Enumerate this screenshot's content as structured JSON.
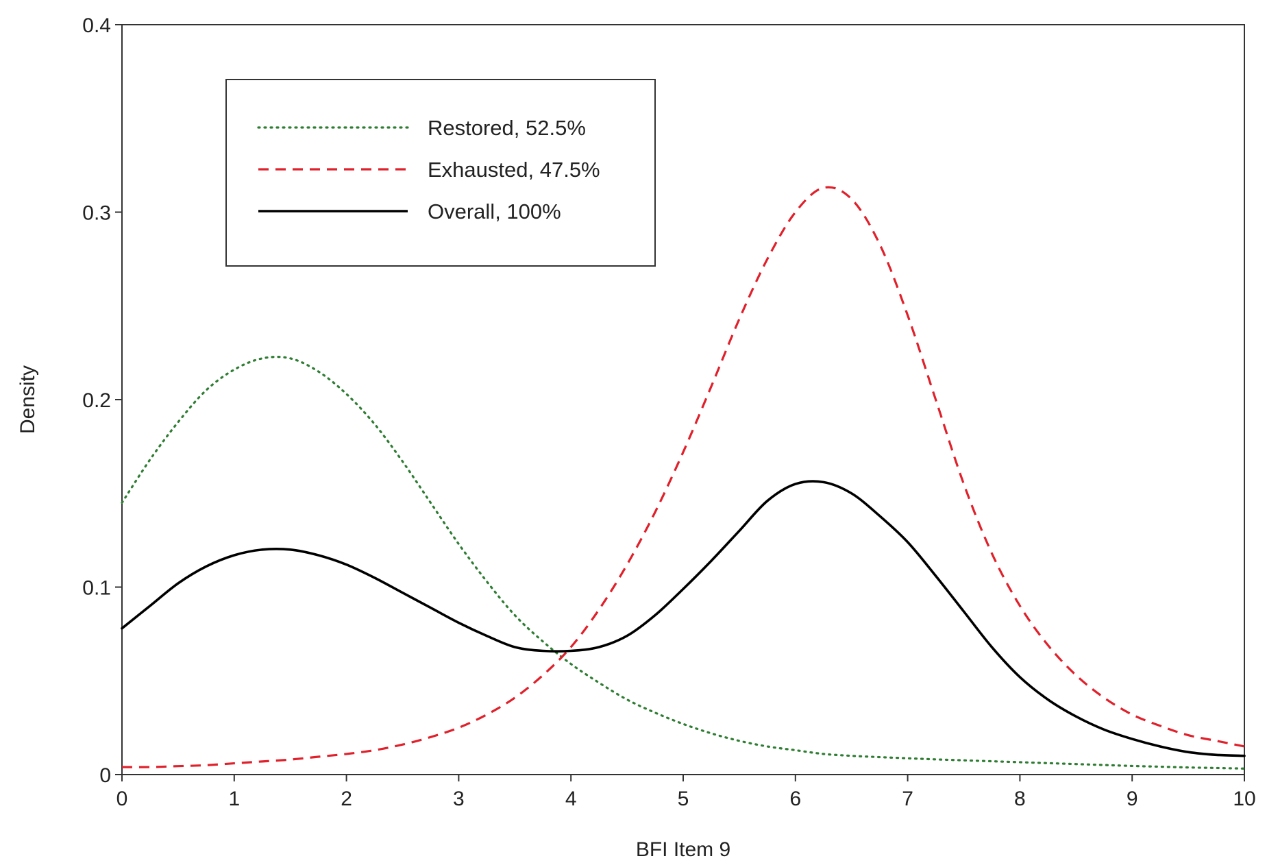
{
  "chart_data": {
    "type": "line",
    "xlabel": "BFI Item 9",
    "ylabel": "Density",
    "xlim": [
      0,
      10
    ],
    "ylim": [
      0,
      0.4
    ],
    "xticks": [
      "0",
      "1",
      "2",
      "3",
      "4",
      "5",
      "6",
      "7",
      "8",
      "9",
      "10"
    ],
    "yticks": [
      "0",
      "0.1",
      "0.2",
      "0.3",
      "0.4"
    ],
    "grid": false,
    "legend_position": "top-left",
    "x": [
      0,
      0.25,
      0.5,
      0.75,
      1,
      1.25,
      1.5,
      1.75,
      2,
      2.25,
      2.5,
      2.75,
      3,
      3.25,
      3.5,
      3.75,
      4,
      4.25,
      4.5,
      4.75,
      5,
      5.25,
      5.5,
      5.75,
      6,
      6.25,
      6.5,
      6.75,
      7,
      7.25,
      7.5,
      7.75,
      8,
      8.25,
      8.5,
      8.75,
      9,
      9.25,
      9.5,
      9.75,
      10
    ],
    "series": [
      {
        "name": "Restored, 52.5%",
        "color": "#2e7d32",
        "style": "dotted",
        "values": [
          0.145,
          0.168,
          0.188,
          0.205,
          0.216,
          0.222,
          0.222,
          0.215,
          0.203,
          0.187,
          0.167,
          0.145,
          0.123,
          0.103,
          0.085,
          0.071,
          0.059,
          0.049,
          0.04,
          0.033,
          0.027,
          0.022,
          0.018,
          0.015,
          0.013,
          0.011,
          0.01,
          0.0093,
          0.0087,
          0.0081,
          0.0076,
          0.0071,
          0.0066,
          0.0061,
          0.0056,
          0.0051,
          0.0046,
          0.0042,
          0.0038,
          0.0035,
          0.0032
        ]
      },
      {
        "name": "Exhausted, 47.5%",
        "color": "#e0202a",
        "style": "dashed",
        "values": [
          0.004,
          0.004,
          0.0045,
          0.005,
          0.006,
          0.007,
          0.008,
          0.0095,
          0.011,
          0.013,
          0.016,
          0.02,
          0.025,
          0.032,
          0.041,
          0.053,
          0.068,
          0.088,
          0.112,
          0.14,
          0.172,
          0.207,
          0.243,
          0.275,
          0.3,
          0.313,
          0.307,
          0.283,
          0.245,
          0.2,
          0.155,
          0.118,
          0.09,
          0.069,
          0.053,
          0.041,
          0.032,
          0.026,
          0.021,
          0.018,
          0.015
        ]
      },
      {
        "name": "Overall, 100%",
        "color": "#000000",
        "style": "solid",
        "values": [
          0.078,
          0.09,
          0.102,
          0.111,
          0.117,
          0.12,
          0.12,
          0.117,
          0.112,
          0.105,
          0.097,
          0.089,
          0.081,
          0.074,
          0.068,
          0.066,
          0.066,
          0.068,
          0.074,
          0.085,
          0.099,
          0.114,
          0.13,
          0.146,
          0.155,
          0.156,
          0.15,
          0.138,
          0.124,
          0.106,
          0.087,
          0.068,
          0.052,
          0.04,
          0.031,
          0.024,
          0.019,
          0.015,
          0.012,
          0.0105,
          0.01
        ]
      }
    ]
  }
}
